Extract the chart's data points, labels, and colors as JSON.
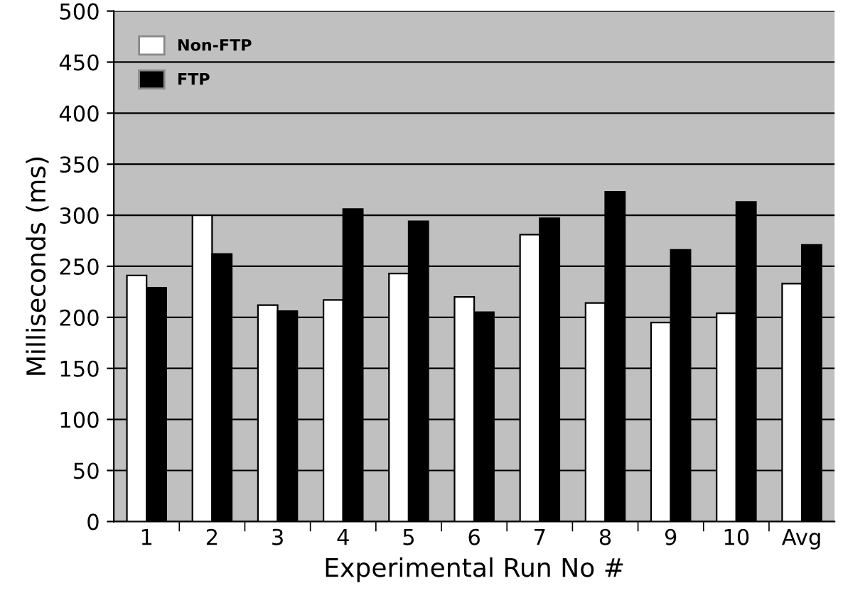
{
  "chart_data": {
    "type": "bar",
    "xlabel": "Experimental Run No #",
    "ylabel": "Milliseconds (ms)",
    "categories": [
      "1",
      "2",
      "3",
      "4",
      "5",
      "6",
      "7",
      "8",
      "9",
      "10",
      "Avg"
    ],
    "series": [
      {
        "name": "Non-FTP",
        "color": "#ffffff",
        "values": [
          241,
          300,
          212,
          217,
          243,
          220,
          281,
          214,
          195,
          204,
          233
        ]
      },
      {
        "name": "FTP",
        "color": "#000000",
        "values": [
          229,
          262,
          206,
          306,
          294,
          205,
          297,
          323,
          266,
          313,
          271
        ]
      }
    ],
    "ylim": [
      0,
      500
    ],
    "yticks": [
      0,
      50,
      100,
      150,
      200,
      250,
      300,
      350,
      400,
      450,
      500
    ],
    "grid": "y",
    "legend": "top left"
  }
}
